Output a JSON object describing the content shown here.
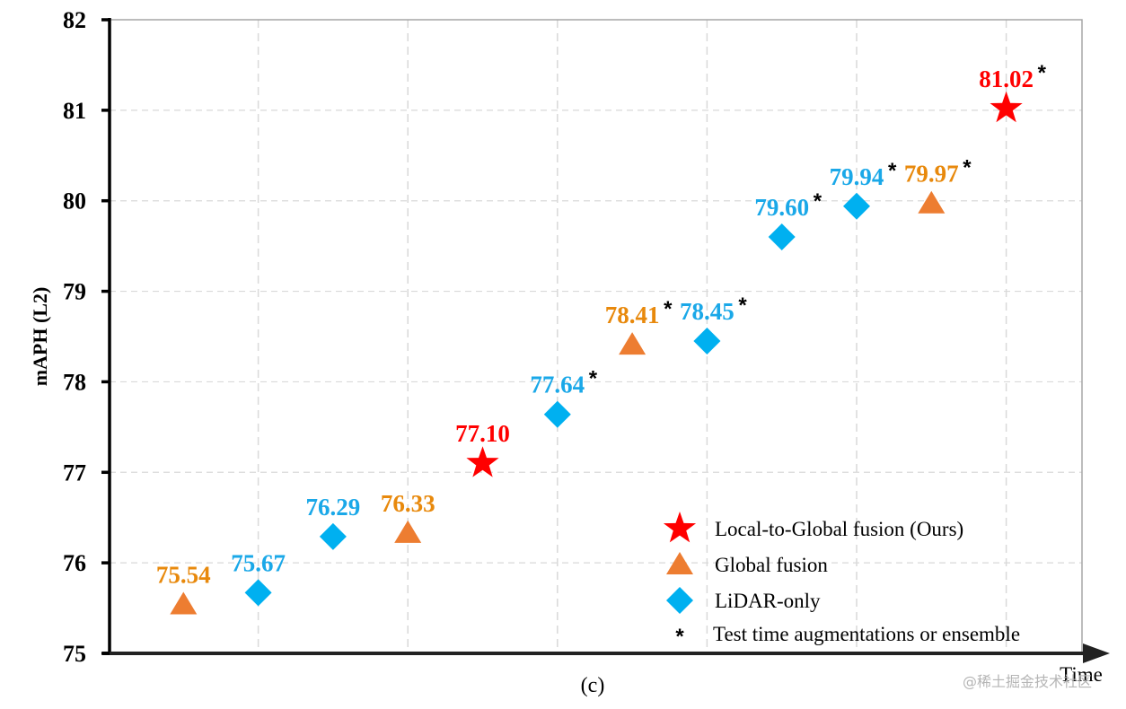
{
  "chart_data": {
    "type": "scatter",
    "title": "",
    "caption": "(c)",
    "xlabel": "Time",
    "ylabel": "mAPH (L2)",
    "ylim": [
      75,
      82
    ],
    "yticks": [
      "75",
      "76",
      "77",
      "78",
      "79",
      "80",
      "81",
      "82"
    ],
    "grid": true,
    "legend_position": "bottom-right",
    "colors": {
      "Local-to-Global fusion (Ours)": "#ff0000",
      "Global fusion": "#ed7d31",
      "LiDAR-only": "#00b0f0",
      "label_global": "#e8890c",
      "label_lidar": "#1aa8e8"
    },
    "series": [
      {
        "name": "Local-to-Global fusion (Ours)",
        "marker": "star"
      },
      {
        "name": "Global fusion",
        "marker": "triangle"
      },
      {
        "name": "LiDAR-only",
        "marker": "diamond"
      }
    ],
    "points": [
      {
        "order": 1,
        "value": 75.54,
        "label": "75.54",
        "series": "Global fusion",
        "tta": false
      },
      {
        "order": 2,
        "value": 75.67,
        "label": "75.67",
        "series": "LiDAR-only",
        "tta": false
      },
      {
        "order": 3,
        "value": 76.29,
        "label": "76.29",
        "series": "LiDAR-only",
        "tta": false
      },
      {
        "order": 4,
        "value": 76.33,
        "label": "76.33",
        "series": "Global fusion",
        "tta": false
      },
      {
        "order": 5,
        "value": 77.1,
        "label": "77.10",
        "series": "Local-to-Global fusion (Ours)",
        "tta": false
      },
      {
        "order": 6,
        "value": 77.64,
        "label": "77.64",
        "series": "LiDAR-only",
        "tta": true
      },
      {
        "order": 7,
        "value": 78.41,
        "label": "78.41",
        "series": "Global fusion",
        "tta": true
      },
      {
        "order": 8,
        "value": 78.45,
        "label": "78.45",
        "series": "LiDAR-only",
        "tta": true
      },
      {
        "order": 9,
        "value": 79.6,
        "label": "79.60",
        "series": "LiDAR-only",
        "tta": true
      },
      {
        "order": 10,
        "value": 79.94,
        "label": "79.94",
        "series": "LiDAR-only",
        "tta": true
      },
      {
        "order": 11,
        "value": 79.97,
        "label": "79.97",
        "series": "Global fusion",
        "tta": true
      },
      {
        "order": 12,
        "value": 81.02,
        "label": "81.02",
        "series": "Local-to-Global fusion (Ours)",
        "tta": true
      }
    ],
    "legend": [
      {
        "marker": "star",
        "label": "Local-to-Global fusion (Ours)"
      },
      {
        "marker": "triangle",
        "label": "Global fusion"
      },
      {
        "marker": "diamond",
        "label": "LiDAR-only"
      },
      {
        "marker": "asterisk",
        "label": "Test time augmentations or ensemble"
      }
    ],
    "tta_symbol": "*"
  },
  "watermark": "@稀土掘金技术社区"
}
